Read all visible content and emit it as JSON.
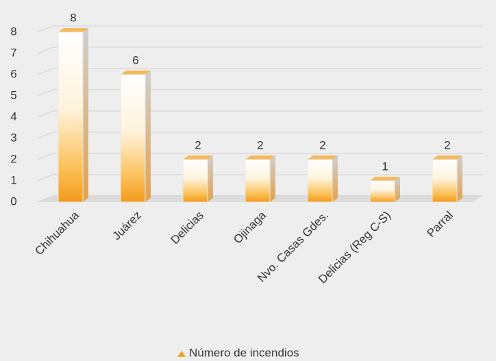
{
  "chart_data": {
    "type": "bar3d",
    "categories": [
      "Chihuahua",
      "Juárez",
      "Delicias",
      "Ojinaga",
      "Nvo. Casas Gdes.",
      "Delicias (Reg C-S)",
      "Parral"
    ],
    "series": [
      {
        "name": "Número de incendios",
        "color": "#f7a21b",
        "values": [
          8,
          6,
          2,
          2,
          2,
          1,
          2
        ]
      }
    ],
    "ylim": [
      0,
      8
    ],
    "yticks": [
      0,
      1,
      2,
      3,
      4,
      5,
      6,
      7,
      8
    ],
    "grid": true,
    "legend": "bottom"
  }
}
